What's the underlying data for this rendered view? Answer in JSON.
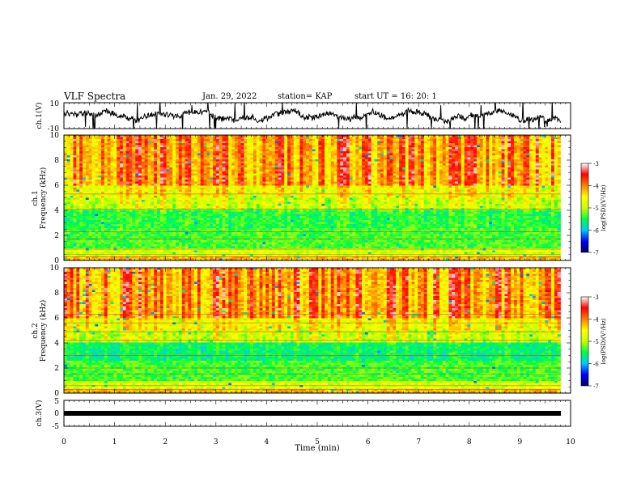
{
  "header": {
    "title": "VLF Spectra",
    "date": "Jan. 29, 2022",
    "station": "station= KAP",
    "start": "start  UT  =   16: 20: 1"
  },
  "colorbar": {
    "label": "log(PSD)(V²/Hz)",
    "ticks": [
      "-3",
      "-4",
      "-5",
      "-6",
      "-7"
    ],
    "range": [
      -7,
      -3
    ],
    "colors": [
      "#000060",
      "#0000ff",
      "#00c8ff",
      "#00ff40",
      "#c8ff00",
      "#ffff00",
      "#ff8000",
      "#ff0000",
      "#ffffff"
    ]
  },
  "chart_data": [
    {
      "type": "line",
      "name": "ch1",
      "ylabel": "ch.1(V)",
      "ylim": [
        -10,
        10
      ],
      "y_ticks": [
        "10",
        "-10"
      ],
      "xlim": [
        0,
        10
      ],
      "note_trace": "noisy waveform roughly between -6 and 8 V over 0 to 9.8 min"
    },
    {
      "type": "heatmap",
      "name": "ch1-spectrogram",
      "ylabel": "ch.1\nFrequency (kHz)",
      "ylim": [
        0,
        10
      ],
      "y_ticks": [
        "10",
        "8",
        "6",
        "4",
        "2",
        "0"
      ],
      "xlim": [
        0,
        10
      ],
      "data_end_min": 9.8
    },
    {
      "type": "heatmap",
      "name": "ch2-spectrogram",
      "ylabel": "ch.2\nFrequency (kHz)",
      "ylim": [
        0,
        10
      ],
      "y_ticks": [
        "10",
        "8",
        "6",
        "4",
        "2",
        "0"
      ],
      "xlim": [
        0,
        10
      ],
      "data_end_min": 9.8
    },
    {
      "type": "line",
      "name": "ch3",
      "ylabel": "ch.3(V)",
      "ylim": [
        -5,
        5
      ],
      "y_ticks": [
        "5",
        "0",
        "-5"
      ],
      "xlim": [
        0,
        10
      ],
      "xlabel": "Time  (min)",
      "x_ticks": [
        "0",
        "1",
        "2",
        "3",
        "4",
        "5",
        "6",
        "7",
        "8",
        "9",
        "10"
      ],
      "values_approx": [
        0
      ]
    }
  ]
}
